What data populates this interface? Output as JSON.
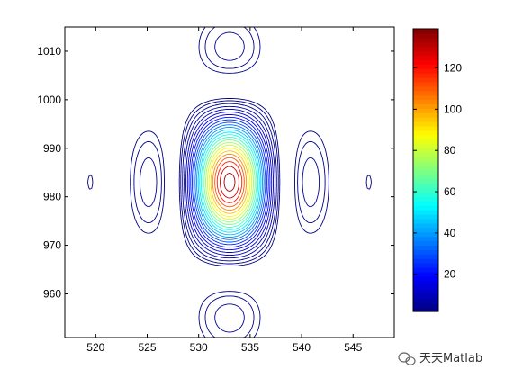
{
  "chart_data": {
    "type": "contour",
    "title": "",
    "xlabel": "",
    "ylabel": "",
    "xlim": [
      517,
      549
    ],
    "ylim": [
      951,
      1015
    ],
    "x_ticks": [
      520,
      525,
      530,
      535,
      540,
      545
    ],
    "y_ticks": [
      960,
      970,
      980,
      990,
      1000,
      1010
    ],
    "grid": false,
    "colormap": "jet",
    "colorbar": {
      "range": [
        2,
        139
      ],
      "ticks": [
        20,
        40,
        60,
        80,
        100,
        120
      ],
      "placement": "right"
    },
    "peak": {
      "x": 533,
      "y": 983,
      "value": 139
    },
    "lobe_centers_x": [
      519.2,
      523.2,
      527.2,
      533,
      538.6,
      542.9,
      547.3
    ],
    "lobe_centers_y": [
      953,
      963.5,
      983,
      1002.5,
      1013
    ],
    "level_count": 26
  },
  "watermark": {
    "text": "天天Matlab",
    "accent": "#1e6fb8"
  },
  "colors": {
    "axis": "#000000",
    "background": "#ffffff"
  }
}
